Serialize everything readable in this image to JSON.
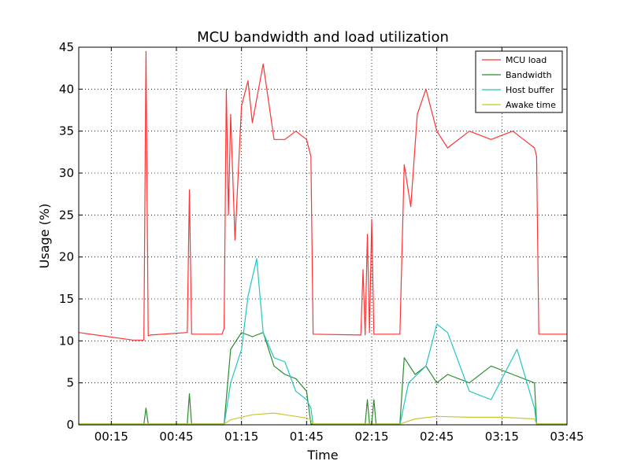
{
  "chart_data": {
    "type": "line",
    "title": "MCU bandwidth and load utilization",
    "xlabel": "Time",
    "ylabel": "Usage (%)",
    "xlim": [
      "00:00",
      "03:45"
    ],
    "ylim": [
      0,
      45
    ],
    "grid": true,
    "legend_position": "top-right",
    "x_ticks": [
      "00:15",
      "00:45",
      "01:15",
      "01:45",
      "02:15",
      "02:45",
      "03:15",
      "03:45"
    ],
    "y_ticks": [
      0,
      5,
      10,
      15,
      20,
      25,
      30,
      35,
      40,
      45
    ],
    "colors": {
      "Bandwidth": "#2e8b2e",
      "MCU load": "#ff3333",
      "Host buffer": "#22c4c4",
      "Awake time": "#c8c832"
    },
    "series": [
      {
        "name": "MCU load",
        "x": [
          "00:00",
          "00:25",
          "00:30",
          "00:31",
          "00:32",
          "00:33",
          "00:50",
          "00:51",
          "00:52",
          "01:06",
          "01:07",
          "01:08",
          "01:09",
          "01:10",
          "01:12",
          "01:15",
          "01:18",
          "01:20",
          "01:25",
          "01:30",
          "01:35",
          "01:40",
          "01:45",
          "01:47",
          "01:48",
          "02:10",
          "02:11",
          "02:12",
          "02:13",
          "02:14",
          "02:15",
          "02:16",
          "02:17",
          "02:18",
          "02:28",
          "02:30",
          "02:33",
          "02:36",
          "02:40",
          "02:45",
          "02:50",
          "03:00",
          "03:10",
          "03:20",
          "03:25",
          "03:30",
          "03:31",
          "03:32",
          "03:45"
        ],
        "y": [
          11,
          10.1,
          10.1,
          44.5,
          10.6,
          10.7,
          11,
          28,
          10.8,
          10.8,
          11.5,
          40,
          25,
          37,
          22,
          38,
          41,
          36,
          43,
          34,
          34,
          35,
          34,
          32,
          10.8,
          10.7,
          18.5,
          10.7,
          22.7,
          11,
          24.5,
          10.8,
          10.8,
          10.8,
          10.8,
          31,
          26,
          37,
          40,
          35,
          33,
          35,
          34,
          35,
          34,
          33,
          32,
          10.8,
          10.8
        ]
      },
      {
        "name": "Bandwidth",
        "x": [
          "00:00",
          "00:30",
          "00:31",
          "00:32",
          "00:33",
          "00:50",
          "00:51",
          "00:52",
          "01:06",
          "01:07",
          "01:10",
          "01:15",
          "01:20",
          "01:25",
          "01:30",
          "01:35",
          "01:40",
          "01:45",
          "01:47",
          "01:48",
          "02:12",
          "02:13",
          "02:14",
          "02:15",
          "02:16",
          "02:17",
          "02:28",
          "02:30",
          "02:35",
          "02:40",
          "02:45",
          "02:50",
          "03:00",
          "03:10",
          "03:20",
          "03:30",
          "03:31",
          "03:45"
        ],
        "y": [
          0.1,
          0.1,
          2,
          0.1,
          0.1,
          0.1,
          3.7,
          0.1,
          0.1,
          0.1,
          9,
          11,
          10.5,
          11,
          7,
          6,
          5.5,
          4,
          0.1,
          0.1,
          0.1,
          3,
          0.1,
          0.1,
          3,
          0.1,
          0.1,
          8,
          6,
          7,
          5,
          6,
          5,
          7,
          6,
          5,
          0.1,
          0.1
        ]
      },
      {
        "name": "Host buffer",
        "x": [
          "00:00",
          "01:07",
          "01:10",
          "01:15",
          "01:18",
          "01:22",
          "01:25",
          "01:30",
          "01:35",
          "01:40",
          "01:45",
          "01:47",
          "01:48",
          "02:28",
          "02:32",
          "02:40",
          "02:45",
          "02:50",
          "03:00",
          "03:10",
          "03:22",
          "03:30",
          "03:31",
          "03:45"
        ],
        "y": [
          0,
          0,
          5,
          9,
          15.3,
          19.8,
          11,
          8,
          7.5,
          4,
          3,
          2,
          0,
          0,
          5,
          7,
          12,
          11,
          4,
          3,
          9,
          2,
          0,
          0
        ]
      },
      {
        "name": "Awake time",
        "x": [
          "00:00",
          "01:07",
          "01:10",
          "01:20",
          "01:30",
          "01:40",
          "01:45",
          "01:47",
          "01:48",
          "02:28",
          "02:35",
          "02:45",
          "03:00",
          "03:15",
          "03:30",
          "03:31",
          "03:45"
        ],
        "y": [
          0.1,
          0.1,
          0.6,
          1.2,
          1.4,
          1,
          0.8,
          0.6,
          0.1,
          0.1,
          0.7,
          1,
          0.9,
          0.9,
          0.7,
          0.1,
          0.1
        ]
      }
    ]
  }
}
